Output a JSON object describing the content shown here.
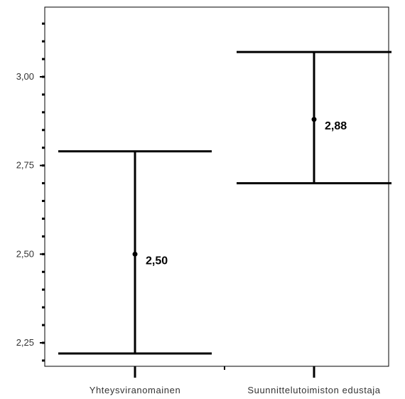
{
  "chart_data": {
    "type": "errorbar",
    "categories": [
      "Yhteysviranomainen",
      "Suunnittelutoimiston edustaja"
    ],
    "series": [
      {
        "means": [
          2.5,
          2.88
        ],
        "lower": [
          2.22,
          2.7
        ],
        "upper": [
          2.79,
          3.07
        ],
        "data_labels": [
          "2,50",
          "2,88"
        ]
      }
    ],
    "yticks": [
      2.25,
      2.5,
      2.75,
      3.0
    ],
    "ytick_labels": [
      "2,25",
      "2,50",
      "2,75",
      "3,00"
    ],
    "ylim": [
      2.19,
      3.2
    ],
    "grid": false,
    "legend": "none",
    "colors": {
      "marks": "#000000",
      "text": "#333333"
    }
  }
}
